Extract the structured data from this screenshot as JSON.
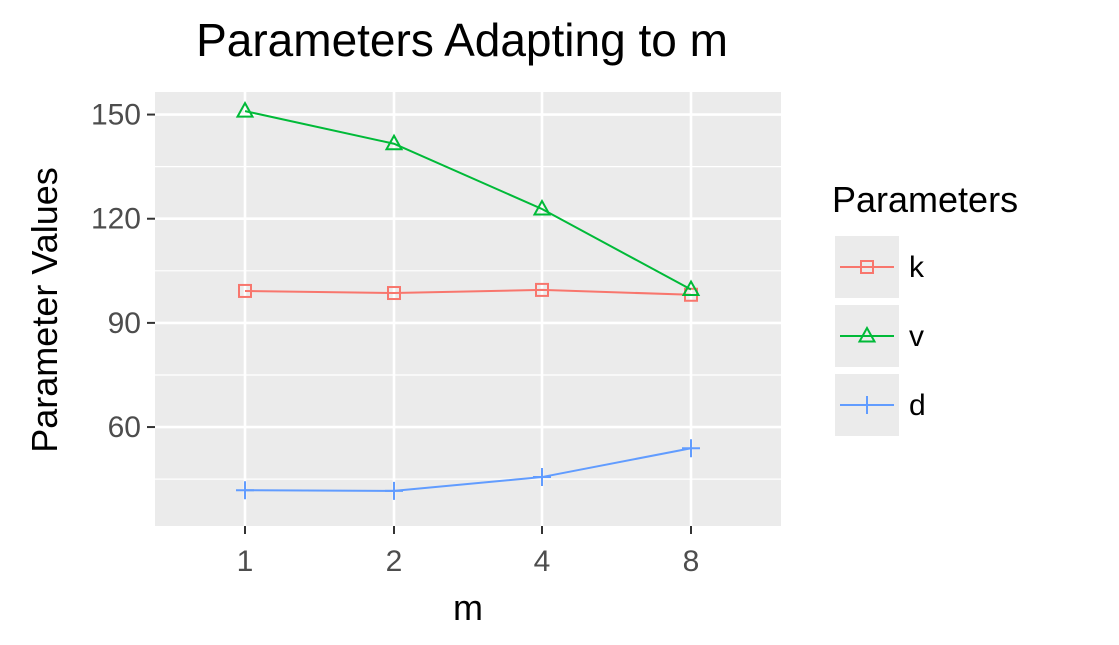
{
  "chart_data": {
    "type": "line",
    "title": "Parameters Adapting to m",
    "xlabel": "m",
    "ylabel": "Parameter Values",
    "categories": [
      "1",
      "2",
      "4",
      "8"
    ],
    "ylim": [
      31.5,
      156.5
    ],
    "yticks": [
      60,
      90,
      120,
      150
    ],
    "yticks_labels": [
      "60",
      "90",
      "120",
      "150"
    ],
    "grid": true,
    "legend_title": "Parameters",
    "legend_position": "right",
    "series": [
      {
        "name": "k",
        "values": [
          99.2,
          98.6,
          99.5,
          98.1
        ],
        "color": "#F8766D",
        "marker": "square"
      },
      {
        "name": "v",
        "values": [
          151.0,
          141.6,
          122.8,
          99.6
        ],
        "color": "#00BA38",
        "marker": "triangle"
      },
      {
        "name": "d",
        "values": [
          41.8,
          41.6,
          45.6,
          53.9
        ],
        "color": "#619CFF",
        "marker": "plus"
      }
    ]
  }
}
